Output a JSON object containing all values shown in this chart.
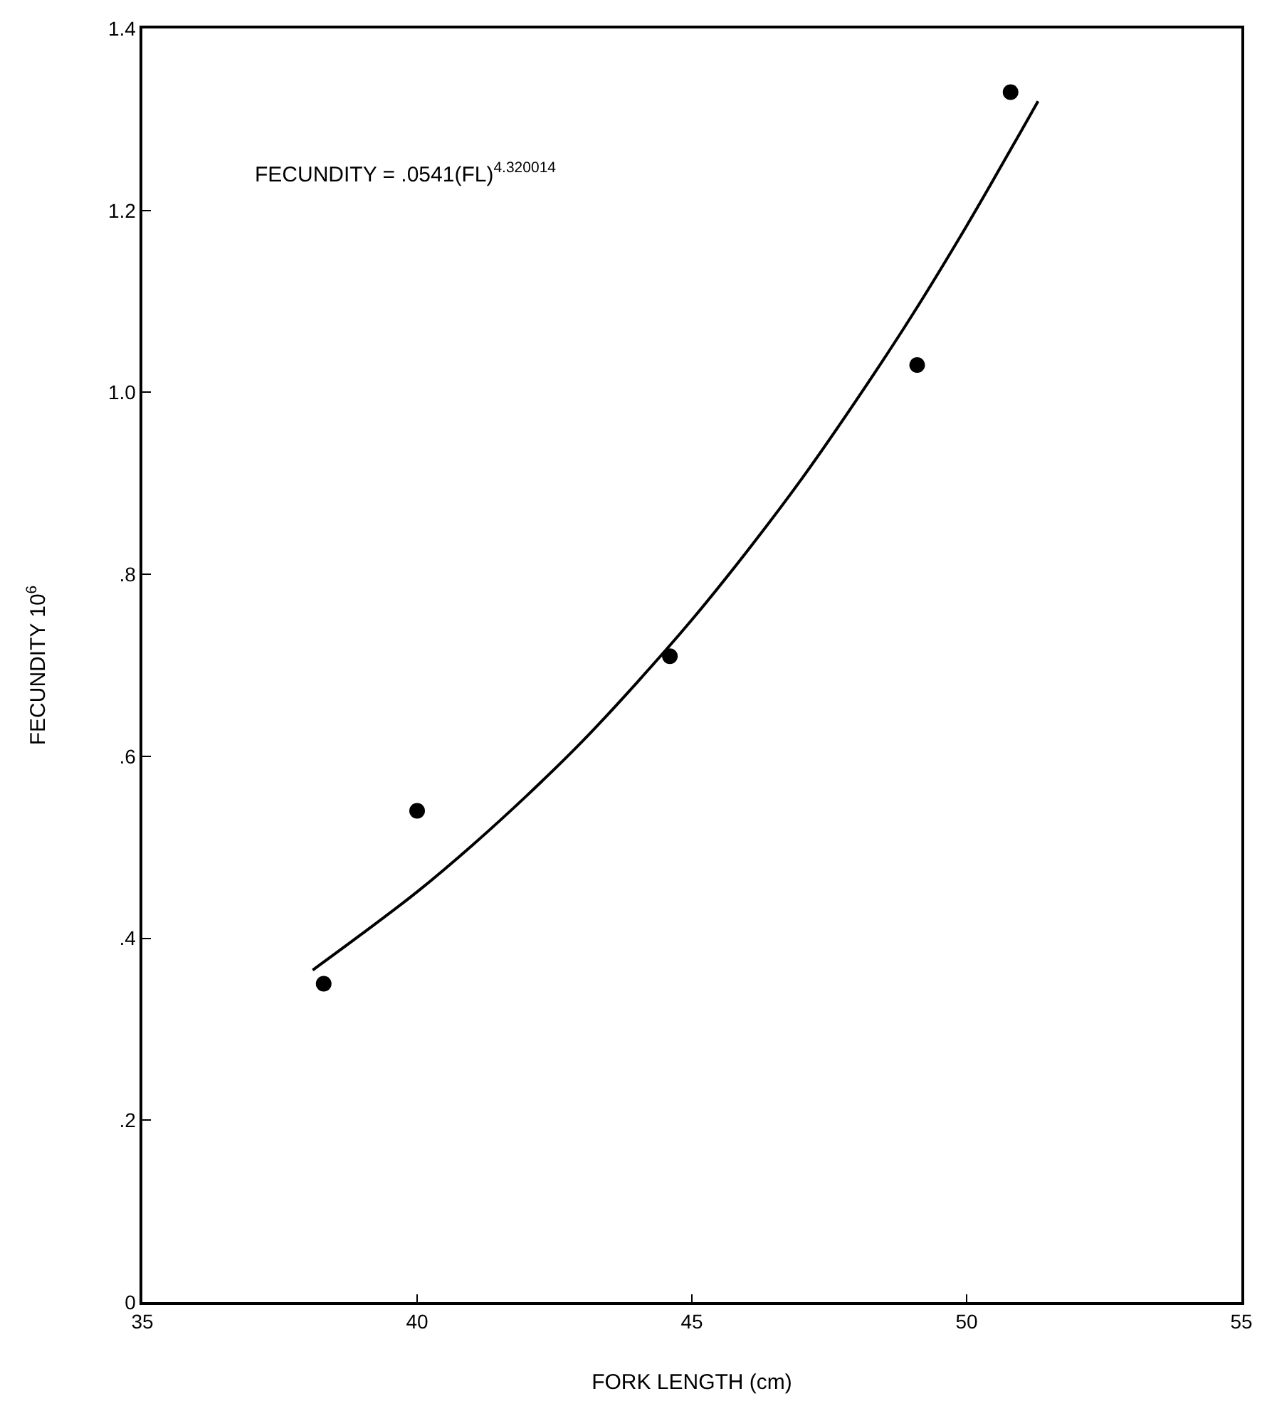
{
  "chart_data": {
    "type": "scatter",
    "xlabel": "FORK LENGTH (cm)",
    "ylabel": "FECUNDITY 10$^{6}$",
    "annotations": [
      "FECUNDITY = .0541(FL)$^{4.320014}$"
    ],
    "x": [
      38.3,
      40.0,
      44.6,
      49.1,
      50.8
    ],
    "series": [
      {
        "color": "#000000",
        "values": [
          0.35,
          0.54,
          0.71,
          1.03,
          1.33
        ]
      },
      {
        "type": "line",
        "color": "#000000",
        "marker": "none",
        "line_style": "solid",
        "x": [
          38.1,
          39,
          40,
          41,
          42,
          43,
          44,
          45,
          46,
          47,
          48,
          49,
          50,
          51,
          51.3
        ],
        "values": [
          0.365,
          0.405,
          0.451,
          0.502,
          0.557,
          0.616,
          0.681,
          0.75,
          0.825,
          0.905,
          0.992,
          1.084,
          1.183,
          1.288,
          1.32
        ]
      }
    ],
    "xlim": [
      35,
      55
    ],
    "xticks": [
      35,
      40,
      45,
      50,
      55
    ],
    "ylim": [
      0,
      1.4
    ],
    "yticks": [
      0,
      {
        "value": 0.2,
        "label": ".2"
      },
      {
        "value": 0.4,
        "label": ".4"
      },
      {
        "value": 0.6,
        "label": ".6"
      },
      {
        "value": 0.8,
        "label": ".8"
      },
      {
        "value": 1.0,
        "label": "1.0"
      },
      {
        "value": 1.2,
        "label": "1.2"
      },
      {
        "value": 1.4,
        "label": "1.4"
      }
    ],
    "marker": "circle"
  }
}
